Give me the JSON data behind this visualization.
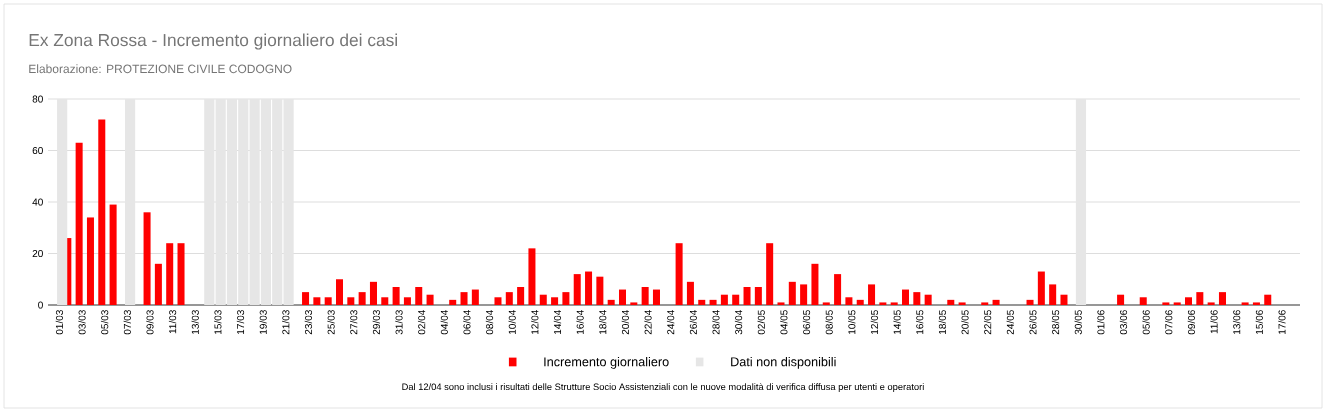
{
  "chart_data": {
    "type": "bar",
    "title": "Ex Zona Rossa - Incremento giornaliero dei casi",
    "subtitle": "Elaborazione:  PROTEZIONE CIVILE CODOGNO",
    "annotations": [
      "Dal 12/04 sono inclusi i risultati delle Strutture Socio Assistenziali con le nuove modalità di verifica diffusa per utenti e operatori"
    ],
    "categories": [
      "01/03",
      null,
      "03/03",
      null,
      "05/03",
      null,
      "07/03",
      null,
      "09/03",
      null,
      "11/03",
      null,
      "13/03",
      null,
      "15/03",
      null,
      "17/03",
      null,
      "19/03",
      null,
      "21/03",
      null,
      "23/03",
      null,
      "25/03",
      null,
      "27/03",
      null,
      "29/03",
      null,
      "31/03",
      null,
      "02/04",
      null,
      "04/04",
      null,
      "06/04",
      null,
      "08/04",
      null,
      "10/04",
      null,
      "12/04",
      null,
      "14/04",
      null,
      "16/04",
      null,
      "18/04",
      null,
      "20/04",
      null,
      "22/04",
      null,
      "24/04",
      null,
      "26/04",
      null,
      "28/04",
      null,
      "30/04",
      null,
      "02/05",
      null,
      "04/05",
      null,
      "06/05",
      null,
      "08/05",
      null,
      "10/05",
      null,
      "12/05",
      null,
      "14/05",
      null,
      "16/05",
      null,
      "18/05",
      null,
      "20/05",
      null,
      "22/05",
      null,
      "24/05",
      null,
      "26/05",
      null,
      "28/05",
      null,
      "30/05",
      null,
      "01/06",
      null,
      "03/06",
      null,
      "05/06",
      null,
      "07/06",
      null,
      "09/06",
      null,
      "11/06",
      null,
      "13/06",
      null,
      "15/06",
      null,
      "17/06"
    ],
    "series": [
      {
        "name": "Incremento giornaliero",
        "color": "#ff0000",
        "values": [
          null,
          26,
          63,
          34,
          72,
          39,
          null,
          0,
          36,
          16,
          24,
          24,
          0,
          null,
          null,
          null,
          null,
          null,
          null,
          null,
          null,
          0,
          5,
          3,
          3,
          10,
          3,
          5,
          9,
          3,
          7,
          3,
          7,
          4,
          0,
          2,
          5,
          6,
          0,
          3,
          5,
          7,
          22,
          4,
          3,
          5,
          12,
          13,
          11,
          2,
          6,
          1,
          7,
          6,
          0,
          24,
          9,
          2,
          2,
          4,
          4,
          7,
          7,
          24,
          1,
          9,
          8,
          16,
          1,
          12,
          3,
          2,
          8,
          1,
          1,
          6,
          5,
          4,
          0,
          2,
          1,
          0,
          1,
          2,
          0,
          0,
          2,
          13,
          8,
          4,
          null,
          0,
          0,
          0,
          4,
          0,
          3,
          0,
          1,
          1,
          3,
          5,
          1,
          5,
          0,
          1,
          1,
          4,
          0
        ]
      },
      {
        "name": "Dati non disponibili",
        "color": "#e6e6e6",
        "values": [
          80,
          null,
          null,
          null,
          null,
          null,
          80,
          null,
          null,
          null,
          null,
          null,
          null,
          80,
          80,
          80,
          80,
          80,
          80,
          80,
          80,
          null,
          null,
          null,
          null,
          null,
          null,
          null,
          null,
          null,
          null,
          null,
          null,
          null,
          null,
          null,
          null,
          null,
          null,
          null,
          null,
          null,
          null,
          null,
          null,
          null,
          null,
          null,
          null,
          null,
          null,
          null,
          null,
          null,
          null,
          null,
          null,
          null,
          null,
          null,
          null,
          null,
          null,
          null,
          null,
          null,
          null,
          null,
          null,
          null,
          null,
          null,
          null,
          null,
          null,
          null,
          null,
          null,
          null,
          null,
          null,
          null,
          null,
          null,
          null,
          null,
          null,
          null,
          null,
          null,
          80,
          null,
          null,
          null,
          null,
          null,
          null,
          null,
          null,
          null,
          null,
          null,
          null,
          null,
          null,
          null,
          null,
          null,
          null
        ]
      }
    ],
    "ylim": [
      0,
      80
    ],
    "yticks": [
      0,
      20,
      40,
      60,
      80
    ],
    "grid": "y",
    "legend": "bottom"
  }
}
